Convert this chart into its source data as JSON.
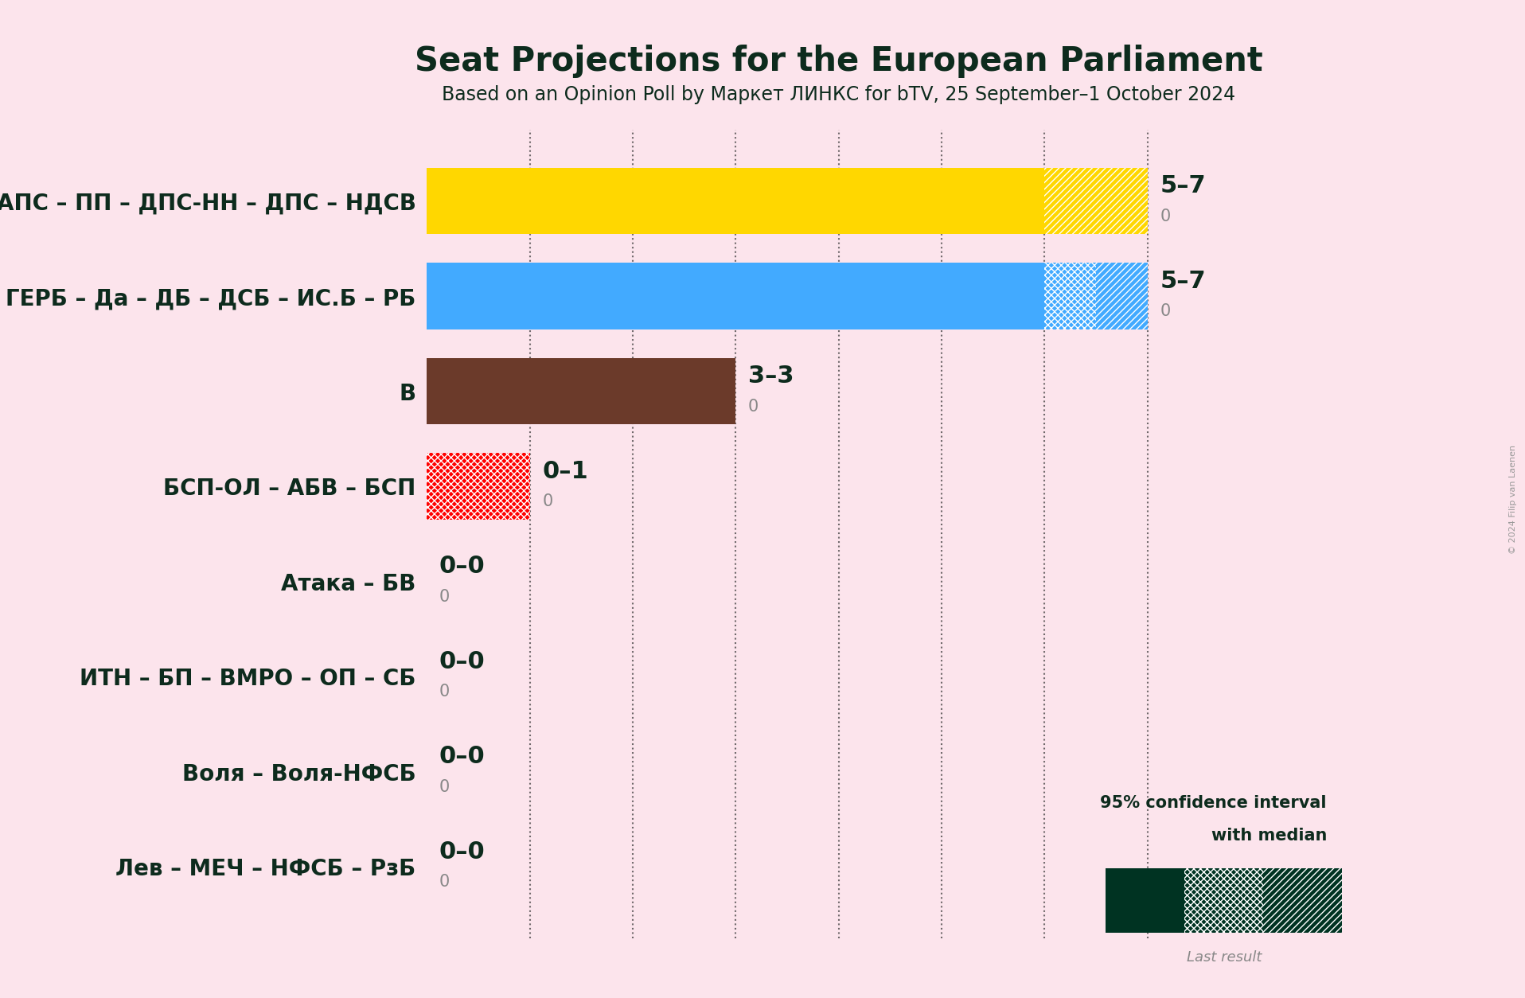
{
  "title": "Seat Projections for the European Parliament",
  "subtitle": "Based on an Opinion Poll by Маркет ЛИНКС for bTV, 25 September–1 October 2024",
  "copyright": "© 2024 Filip van Laenen",
  "background_color": "#fce4ec",
  "parties": [
    "АПС – ПП – ДПС-НН – ДПС – НДСВ",
    "ГЕРБ – Да – ДБ – ДСБ – ИС.Б – РБ",
    "В",
    "БСП-ОЛ – АБВ – БСП",
    "Атака – БВ",
    "ИТН – БП – ВМРО – ОП – СБ",
    "Воля – Воля-НФСБ",
    "Лев – МЕЧ – НФСБ – РзБ"
  ],
  "median_values": [
    6,
    6,
    3,
    0,
    0,
    0,
    0,
    0
  ],
  "low_values": [
    5,
    5,
    3,
    0,
    0,
    0,
    0,
    0
  ],
  "high_values": [
    7,
    7,
    3,
    1,
    0,
    0,
    0,
    0
  ],
  "last_results": [
    0,
    0,
    0,
    0,
    0,
    0,
    0,
    0
  ],
  "labels": [
    "5–7",
    "5–7",
    "3–3",
    "0–1",
    "0–0",
    "0–0",
    "0–0",
    "0–0"
  ],
  "bar_colors": [
    "#FFD700",
    "#42AAFF",
    "#6B3A2A",
    "#FF0000",
    null,
    null,
    null,
    null
  ],
  "hatch_styles": [
    "///",
    "xxx",
    null,
    "xxx",
    null,
    null,
    null,
    null
  ],
  "text_color": "#0d2b1d",
  "gray_color": "#888888",
  "xlim_max": 8,
  "bar_height": 0.7,
  "gridline_positions": [
    1,
    2,
    3,
    4,
    5,
    6,
    7
  ],
  "title_fontsize": 30,
  "subtitle_fontsize": 17,
  "ylabel_fontsize": 20,
  "label_fontsize": 22,
  "secondary_fontsize": 15,
  "legend_solid_color": "#003322",
  "legend_bg_color": "#808080"
}
